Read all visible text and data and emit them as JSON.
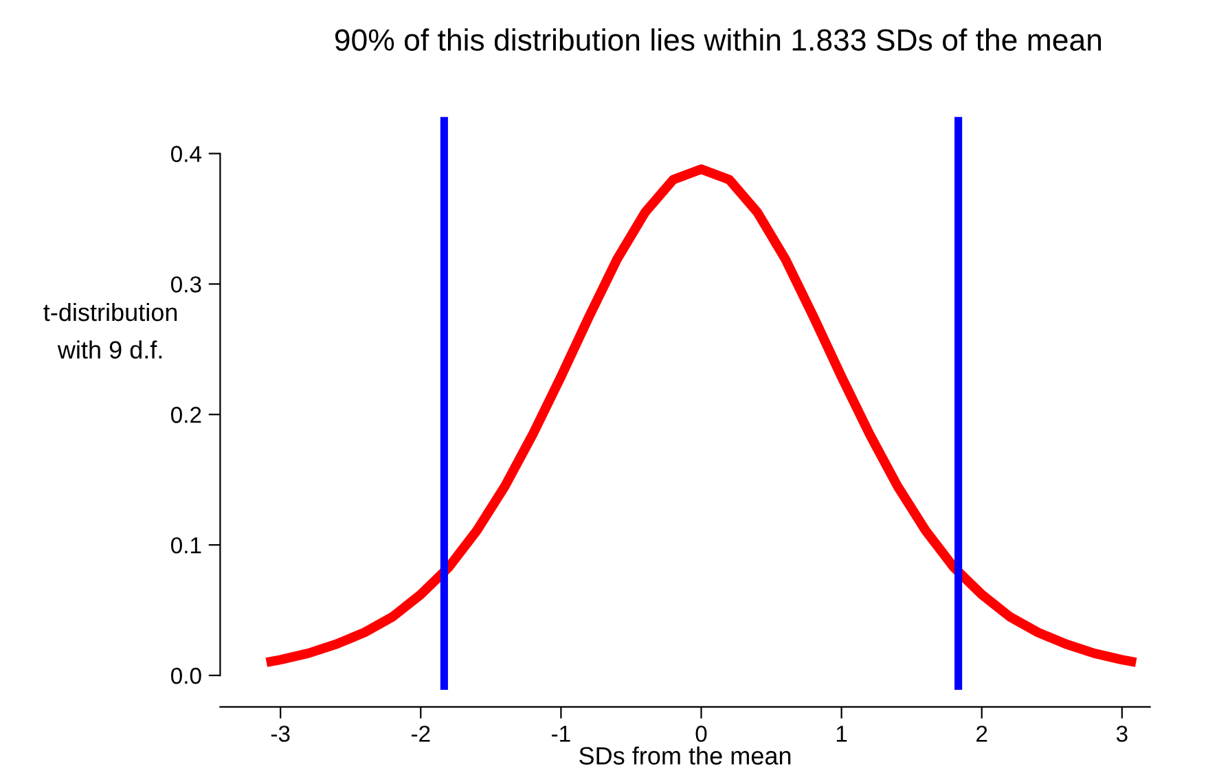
{
  "chart_data": {
    "type": "line",
    "title": "90% of this distribution lies within 1.833 SDs of the mean",
    "xlabel": "SDs from the mean",
    "ylabel": "t-distribution\nwith 9 d.f.",
    "x": [
      -3.1,
      -3.0,
      -2.8,
      -2.6,
      -2.4,
      -2.2,
      -2.0,
      -1.8,
      -1.6,
      -1.4,
      -1.2,
      -1.0,
      -0.8,
      -0.6,
      -0.4,
      -0.2,
      0.0,
      0.2,
      0.4,
      0.6,
      0.8,
      1.0,
      1.2,
      1.4,
      1.6,
      1.8,
      2.0,
      2.2,
      2.4,
      2.6,
      2.8,
      3.0,
      3.1
    ],
    "series": [
      {
        "color": "#ff0000",
        "values": [
          0.01,
          0.012,
          0.017,
          0.024,
          0.033,
          0.045,
          0.062,
          0.083,
          0.111,
          0.145,
          0.185,
          0.229,
          0.275,
          0.319,
          0.355,
          0.38,
          0.388,
          0.38,
          0.355,
          0.319,
          0.275,
          0.229,
          0.185,
          0.145,
          0.111,
          0.083,
          0.062,
          0.045,
          0.033,
          0.024,
          0.017,
          0.012,
          0.01
        ]
      }
    ],
    "xlim": [
      -3.43,
      3.2
    ],
    "ylim": [
      -0.011,
      0.428
    ],
    "xticks": [
      -3,
      -2,
      -1,
      0,
      1,
      2,
      3
    ],
    "yticks": [
      {
        "value": 0,
        "label": "0.0"
      },
      0.1,
      0.2,
      0.3,
      0.4
    ],
    "ref_lines": [
      {
        "axis": "x",
        "value": -1.833,
        "color": "#0000ff"
      },
      {
        "axis": "x",
        "value": 1.833,
        "color": "#0000ff"
      }
    ],
    "grid": false,
    "legend": false,
    "marker": "none",
    "line_style": "solid"
  }
}
